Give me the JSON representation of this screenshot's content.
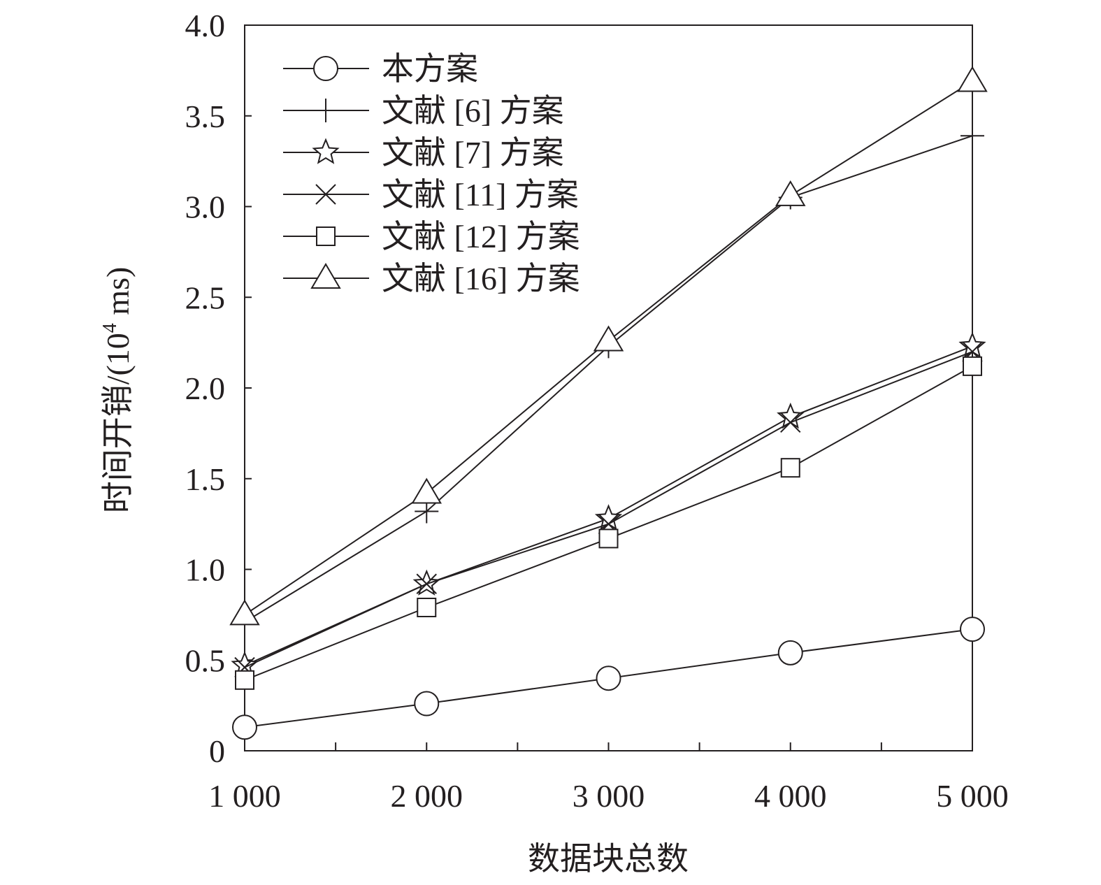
{
  "chart_data": {
    "type": "line",
    "title": "",
    "xlabel": "数据块总数",
    "ylabel": "时间开销/(10",
    "ylabel_sup": "4",
    "ylabel_unit": " ms)",
    "x": [
      1000,
      2000,
      3000,
      4000,
      5000
    ],
    "x_tick_labels": [
      "1 000",
      "2 000",
      "3 000",
      "4 000",
      "5 000"
    ],
    "xlim": [
      1000,
      5000
    ],
    "ylim": [
      0,
      4.0
    ],
    "y_ticks": [
      0,
      0.5,
      1.0,
      1.5,
      2.0,
      2.5,
      3.0,
      3.5,
      4.0
    ],
    "y_tick_labels": [
      "0",
      "0.5",
      "1.0",
      "1.5",
      "2.0",
      "2.5",
      "3.0",
      "3.5",
      "4.0"
    ],
    "grid": false,
    "legend_position": "top-left",
    "line_color": "#231f20",
    "series": [
      {
        "name": "本方案",
        "marker": "circle",
        "values": [
          0.13,
          0.26,
          0.4,
          0.54,
          0.67
        ]
      },
      {
        "name": "文献 [6] 方案",
        "marker": "plus",
        "values": [
          0.71,
          1.32,
          2.23,
          3.05,
          3.39
        ]
      },
      {
        "name": "文献 [7] 方案",
        "marker": "star",
        "values": [
          0.47,
          0.92,
          1.28,
          1.84,
          2.23
        ]
      },
      {
        "name": "文献 [11] 方案",
        "marker": "x",
        "values": [
          0.46,
          0.92,
          1.25,
          1.81,
          2.2
        ]
      },
      {
        "name": "文献 [12] 方案",
        "marker": "square",
        "values": [
          0.39,
          0.79,
          1.17,
          1.56,
          2.12
        ]
      },
      {
        "name": "文献 [16] 方案",
        "marker": "triangle",
        "values": [
          0.75,
          1.42,
          2.26,
          3.06,
          3.69
        ]
      }
    ]
  }
}
